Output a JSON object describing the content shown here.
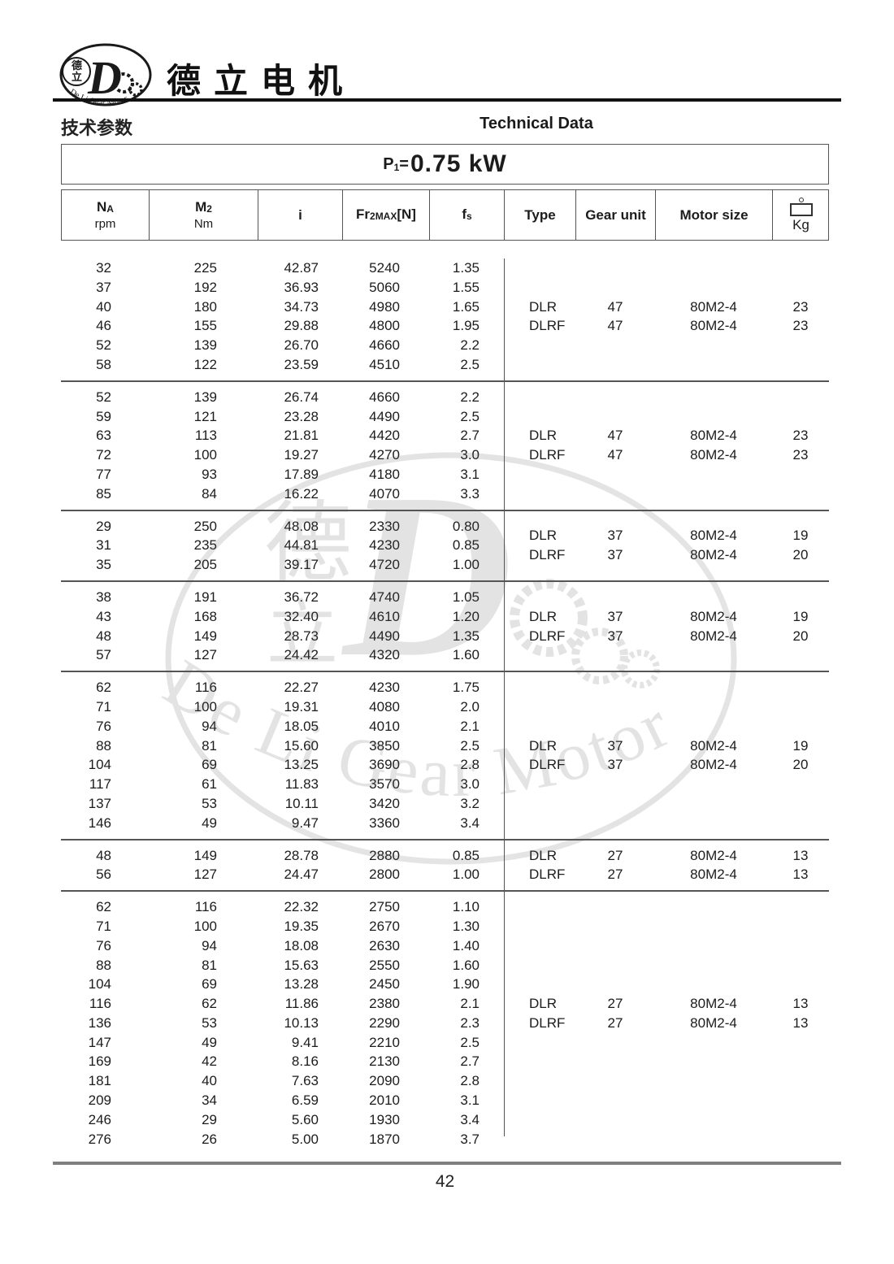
{
  "header": {
    "brand_cn": "德立电机",
    "section_cn": "技术参数",
    "section_en": "Technical Data",
    "logo": {
      "char1": "德",
      "char2": "立",
      "letter": "D",
      "ring_text": "De Li Gear Motor"
    }
  },
  "title": {
    "symbol": "P",
    "symbol_sub": "1",
    "equals": "=",
    "value": "0.75 kW"
  },
  "table": {
    "columns": [
      {
        "main": "N",
        "sub": "A",
        "unit": "rpm"
      },
      {
        "main": "M",
        "sub": "2",
        "unit": "Nm"
      },
      {
        "main": "i"
      },
      {
        "main": "Fr",
        "sub": "2MAX",
        "tail": "[N]"
      },
      {
        "main": "f",
        "sub": "s"
      },
      {
        "main": "Type"
      },
      {
        "main": "Gear unit"
      },
      {
        "main": "Motor size"
      },
      {
        "main": "Kg",
        "icon": "weight-icon"
      }
    ],
    "blocks": [
      {
        "rows": [
          [
            "32",
            "225",
            "42.87",
            "5240",
            "1.35"
          ],
          [
            "37",
            "192",
            "36.93",
            "5060",
            "1.55"
          ],
          [
            "40",
            "180",
            "34.73",
            "4980",
            "1.65"
          ],
          [
            "46",
            "155",
            "29.88",
            "4800",
            "1.95"
          ],
          [
            "52",
            "139",
            "26.70",
            "4660",
            "2.2"
          ],
          [
            "58",
            "122",
            "23.59",
            "4510",
            "2.5"
          ]
        ],
        "specs": [
          {
            "type": "DLR",
            "gear": "47",
            "motor": "80M2-4",
            "kg": "23",
            "row": 2
          },
          {
            "type": "DLRF",
            "gear": "47",
            "motor": "80M2-4",
            "kg": "23",
            "row": 3
          }
        ]
      },
      {
        "rows": [
          [
            "52",
            "139",
            "26.74",
            "4660",
            "2.2"
          ],
          [
            "59",
            "121",
            "23.28",
            "4490",
            "2.5"
          ],
          [
            "63",
            "113",
            "21.81",
            "4420",
            "2.7"
          ],
          [
            "72",
            "100",
            "19.27",
            "4270",
            "3.0"
          ],
          [
            "77",
            "93",
            "17.89",
            "4180",
            "3.1"
          ],
          [
            "85",
            "84",
            "16.22",
            "4070",
            "3.3"
          ]
        ],
        "specs": [
          {
            "type": "DLR",
            "gear": "47",
            "motor": "80M2-4",
            "kg": "23",
            "row": 2
          },
          {
            "type": "DLRF",
            "gear": "47",
            "motor": "80M2-4",
            "kg": "23",
            "row": 3
          }
        ]
      },
      {
        "rows": [
          [
            "29",
            "250",
            "48.08",
            "2330",
            "0.80"
          ],
          [
            "31",
            "235",
            "44.81",
            "4230",
            "0.85"
          ],
          [
            "35",
            "205",
            "39.17",
            "4720",
            "1.00"
          ]
        ],
        "specs": [
          {
            "type": "DLR",
            "gear": "37",
            "motor": "80M2-4",
            "kg": "19",
            "row": 0.5
          },
          {
            "type": "DLRF",
            "gear": "37",
            "motor": "80M2-4",
            "kg": "20",
            "row": 1.5
          }
        ]
      },
      {
        "rows": [
          [
            "38",
            "191",
            "36.72",
            "4740",
            "1.05"
          ],
          [
            "43",
            "168",
            "32.40",
            "4610",
            "1.20"
          ],
          [
            "48",
            "149",
            "28.73",
            "4490",
            "1.35"
          ],
          [
            "57",
            "127",
            "24.42",
            "4320",
            "1.60"
          ]
        ],
        "specs": [
          {
            "type": "DLR",
            "gear": "37",
            "motor": "80M2-4",
            "kg": "19",
            "row": 1
          },
          {
            "type": "DLRF",
            "gear": "37",
            "motor": "80M2-4",
            "kg": "20",
            "row": 2
          }
        ]
      },
      {
        "rows": [
          [
            "62",
            "116",
            "22.27",
            "4230",
            "1.75"
          ],
          [
            "71",
            "100",
            "19.31",
            "4080",
            "2.0"
          ],
          [
            "76",
            "94",
            "18.05",
            "4010",
            "2.1"
          ],
          [
            "88",
            "81",
            "15.60",
            "3850",
            "2.5"
          ],
          [
            "104",
            "69",
            "13.25",
            "3690",
            "2.8"
          ],
          [
            "117",
            "61",
            "11.83",
            "3570",
            "3.0"
          ],
          [
            "137",
            "53",
            "10.11",
            "3420",
            "3.2"
          ],
          [
            "146",
            "49",
            "9.47",
            "3360",
            "3.4"
          ]
        ],
        "specs": [
          {
            "type": "DLR",
            "gear": "37",
            "motor": "80M2-4",
            "kg": "19",
            "row": 3
          },
          {
            "type": "DLRF",
            "gear": "37",
            "motor": "80M2-4",
            "kg": "20",
            "row": 4
          }
        ]
      },
      {
        "rows": [
          [
            "48",
            "149",
            "28.78",
            "2880",
            "0.85"
          ],
          [
            "56",
            "127",
            "24.47",
            "2800",
            "1.00"
          ]
        ],
        "specs": [
          {
            "type": "DLR",
            "gear": "27",
            "motor": "80M2-4",
            "kg": "13",
            "row": 0
          },
          {
            "type": "DLRF",
            "gear": "27",
            "motor": "80M2-4",
            "kg": "13",
            "row": 1
          }
        ]
      },
      {
        "rows": [
          [
            "62",
            "116",
            "22.32",
            "2750",
            "1.10"
          ],
          [
            "71",
            "100",
            "19.35",
            "2670",
            "1.30"
          ],
          [
            "76",
            "94",
            "18.08",
            "2630",
            "1.40"
          ],
          [
            "88",
            "81",
            "15.63",
            "2550",
            "1.60"
          ],
          [
            "104",
            "69",
            "13.28",
            "2450",
            "1.90"
          ],
          [
            "116",
            "62",
            "11.86",
            "2380",
            "2.1"
          ],
          [
            "136",
            "53",
            "10.13",
            "2290",
            "2.3"
          ],
          [
            "147",
            "49",
            "9.41",
            "2210",
            "2.5"
          ],
          [
            "169",
            "42",
            "8.16",
            "2130",
            "2.7"
          ],
          [
            "181",
            "40",
            "7.63",
            "2090",
            "2.8"
          ],
          [
            "209",
            "34",
            "6.59",
            "2010",
            "3.1"
          ],
          [
            "246",
            "29",
            "5.60",
            "1930",
            "3.4"
          ],
          [
            "276",
            "26",
            "5.00",
            "1870",
            "3.7"
          ]
        ],
        "specs": [
          {
            "type": "DLR",
            "gear": "27",
            "motor": "80M2-4",
            "kg": "13",
            "row": 5
          },
          {
            "type": "DLRF",
            "gear": "27",
            "motor": "80M2-4",
            "kg": "13",
            "row": 6
          }
        ]
      }
    ]
  },
  "footer": {
    "page_number": "42"
  }
}
